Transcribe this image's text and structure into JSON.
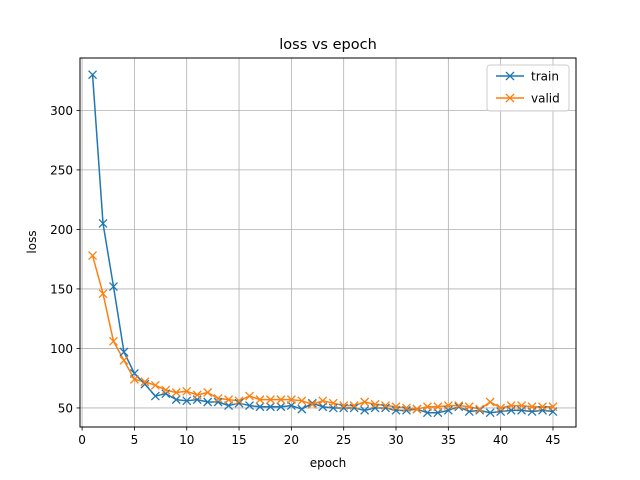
{
  "chart_data": {
    "type": "line",
    "title": "loss vs epoch",
    "xlabel": "epoch",
    "ylabel": "loss",
    "xlim": [
      -0.2,
      47.2
    ],
    "ylim": [
      34,
      344
    ],
    "xticks": [
      0,
      5,
      10,
      15,
      20,
      25,
      30,
      35,
      40,
      45
    ],
    "yticks": [
      50,
      100,
      150,
      200,
      250,
      300
    ],
    "grid": true,
    "legend_position": "upper right",
    "x": [
      1,
      2,
      3,
      4,
      5,
      6,
      7,
      8,
      9,
      10,
      11,
      12,
      13,
      14,
      15,
      16,
      17,
      18,
      19,
      20,
      21,
      22,
      23,
      24,
      25,
      26,
      27,
      28,
      29,
      30,
      31,
      32,
      33,
      34,
      35,
      36,
      37,
      38,
      39,
      40,
      41,
      42,
      43,
      44,
      45
    ],
    "series": [
      {
        "name": "train",
        "color": "#1f77b4",
        "marker": "x",
        "values": [
          330,
          205,
          152,
          97,
          79,
          70,
          60,
          62,
          57,
          56,
          57,
          55,
          55,
          52,
          54,
          52,
          51,
          51,
          51,
          52,
          49,
          54,
          51,
          50,
          50,
          50,
          48,
          50,
          50,
          48,
          48,
          49,
          46,
          46,
          48,
          51,
          47,
          48,
          46,
          47,
          48,
          48,
          47,
          48,
          47
        ]
      },
      {
        "name": "valid",
        "color": "#ff7f0e",
        "marker": "x",
        "values": [
          178,
          146,
          106,
          90,
          74,
          72,
          69,
          65,
          63,
          64,
          61,
          63,
          58,
          57,
          56,
          60,
          57,
          57,
          57,
          57,
          56,
          53,
          56,
          54,
          52,
          52,
          55,
          53,
          52,
          51,
          50,
          49,
          51,
          51,
          52,
          52,
          51,
          49,
          55,
          50,
          52,
          52,
          51,
          51,
          51
        ]
      }
    ]
  }
}
